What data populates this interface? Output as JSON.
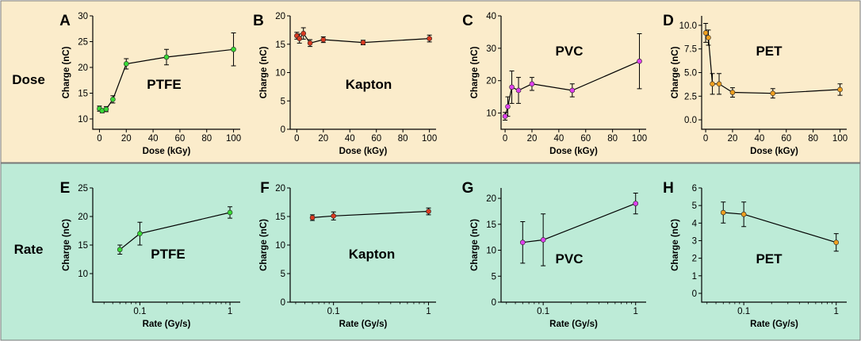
{
  "rows": {
    "dose": {
      "label": "Dose",
      "bg": "#fbeccb"
    },
    "rate": {
      "label": "Rate",
      "bg": "#bdebd7"
    }
  },
  "chart_data": [
    {
      "panel": "A",
      "type": "line",
      "material": "PTFE",
      "row": "dose",
      "xscale": "linear",
      "color": "#39d936",
      "xlabel": "Dose (kGy)",
      "ylabel": "Charge (nC)",
      "xlim": [
        -5,
        105
      ],
      "ylim": [
        8,
        30
      ],
      "xticks": [
        0,
        20,
        40,
        60,
        80,
        100
      ],
      "xtick_labels": [
        "0",
        "20",
        "40",
        "60",
        "80",
        "100"
      ],
      "yticks": [
        10,
        15,
        20,
        25,
        30
      ],
      "ytick_labels": [
        "10",
        "15",
        "20",
        "25",
        "30"
      ],
      "points": [
        {
          "x": 0,
          "y": 12,
          "err": 0.5
        },
        {
          "x": 2,
          "y": 11.6,
          "err": 0.4
        },
        {
          "x": 5,
          "y": 11.9,
          "err": 0.5
        },
        {
          "x": 10,
          "y": 13.8,
          "err": 0.7
        },
        {
          "x": 20,
          "y": 20.7,
          "err": 1.0
        },
        {
          "x": 50,
          "y": 22,
          "err": 1.5
        },
        {
          "x": 100,
          "y": 23.5,
          "err": 3.2
        }
      ]
    },
    {
      "panel": "B",
      "type": "line",
      "material": "Kapton",
      "row": "dose",
      "xscale": "linear",
      "color": "#d93a20",
      "xlabel": "Dose (kGy)",
      "ylabel": "Charge (nC)",
      "xlim": [
        -5,
        105
      ],
      "ylim": [
        0,
        20
      ],
      "xticks": [
        0,
        20,
        40,
        60,
        80,
        100
      ],
      "xtick_labels": [
        "0",
        "20",
        "40",
        "60",
        "80",
        "100"
      ],
      "yticks": [
        0,
        5,
        10,
        15,
        20
      ],
      "ytick_labels": [
        "0",
        "5",
        "10",
        "15",
        "20"
      ],
      "points": [
        {
          "x": 0,
          "y": 16.5,
          "err": 0.6
        },
        {
          "x": 2,
          "y": 16,
          "err": 0.8
        },
        {
          "x": 5,
          "y": 16.9,
          "err": 1.0
        },
        {
          "x": 10,
          "y": 15.2,
          "err": 0.6
        },
        {
          "x": 20,
          "y": 15.8,
          "err": 0.5
        },
        {
          "x": 50,
          "y": 15.3,
          "err": 0.4
        },
        {
          "x": 100,
          "y": 16,
          "err": 0.6
        }
      ]
    },
    {
      "panel": "C",
      "type": "line",
      "material": "PVC",
      "row": "dose",
      "xscale": "linear",
      "color": "#e040ef",
      "xlabel": "Dose (kGy)",
      "ylabel": "Charge (nC)",
      "xlim": [
        -3,
        105
      ],
      "ylim": [
        5,
        40
      ],
      "xticks": [
        0,
        20,
        40,
        60,
        80,
        100
      ],
      "xtick_labels": [
        "0",
        "20",
        "40",
        "60",
        "80",
        "100"
      ],
      "yticks": [
        10,
        20,
        30,
        40
      ],
      "ytick_labels": [
        "10",
        "20",
        "30",
        "40"
      ],
      "points": [
        {
          "x": 0,
          "y": 9,
          "err": 1.2
        },
        {
          "x": 2,
          "y": 12,
          "err": 3.0
        },
        {
          "x": 5,
          "y": 18,
          "err": 5.0
        },
        {
          "x": 10,
          "y": 17,
          "err": 4.0
        },
        {
          "x": 20,
          "y": 19,
          "err": 2.0
        },
        {
          "x": 50,
          "y": 17,
          "err": 2.0
        },
        {
          "x": 100,
          "y": 26,
          "err": 8.5
        }
      ]
    },
    {
      "panel": "D",
      "type": "line",
      "material": "PET",
      "row": "dose",
      "xscale": "linear",
      "color": "#f0a020",
      "xlabel": "Dose (kGy)",
      "ylabel": "Charge (nC)",
      "xlim": [
        -3,
        105
      ],
      "ylim": [
        -1,
        11
      ],
      "xticks": [
        0,
        20,
        40,
        60,
        80,
        100
      ],
      "xtick_labels": [
        "0",
        "20",
        "40",
        "60",
        "80",
        "100"
      ],
      "yticks": [
        0,
        2.5,
        5,
        7.5,
        10
      ],
      "ytick_labels": [
        "0.0",
        "2.5",
        "5.0",
        "7.5",
        "10.0"
      ],
      "points": [
        {
          "x": 0,
          "y": 9.2,
          "err": 1.0
        },
        {
          "x": 2,
          "y": 8.7,
          "err": 0.8
        },
        {
          "x": 5,
          "y": 3.8,
          "err": 1.1
        },
        {
          "x": 10,
          "y": 3.8,
          "err": 1.1
        },
        {
          "x": 20,
          "y": 2.9,
          "err": 0.5
        },
        {
          "x": 50,
          "y": 2.8,
          "err": 0.5
        },
        {
          "x": 100,
          "y": 3.2,
          "err": 0.6
        }
      ]
    },
    {
      "panel": "E",
      "type": "line",
      "material": "PTFE",
      "row": "rate",
      "xscale": "log",
      "color": "#39d936",
      "xlabel": "Rate (Gy/s)",
      "ylabel": "Charge (nC)",
      "xlim": [
        0.03,
        1.3
      ],
      "ylim": [
        5,
        25
      ],
      "xticks": [
        0.1,
        1
      ],
      "xtick_labels": [
        "0.1",
        "1"
      ],
      "yticks": [
        10,
        15,
        20,
        25
      ],
      "ytick_labels": [
        "10",
        "15",
        "20",
        "25"
      ],
      "points": [
        {
          "x": 0.06,
          "y": 14.2,
          "err": 0.8
        },
        {
          "x": 0.1,
          "y": 17,
          "err": 2.0
        },
        {
          "x": 1,
          "y": 20.7,
          "err": 1.0
        }
      ]
    },
    {
      "panel": "F",
      "type": "line",
      "material": "Kapton",
      "row": "rate",
      "xscale": "log",
      "color": "#d93a20",
      "xlabel": "Rate (Gy/s)",
      "ylabel": "Charge (nC)",
      "xlim": [
        0.035,
        1.2
      ],
      "ylim": [
        0,
        20
      ],
      "xticks": [
        0.1,
        1
      ],
      "xtick_labels": [
        "0.1",
        "1"
      ],
      "yticks": [
        0,
        5,
        10,
        15,
        20
      ],
      "ytick_labels": [
        "0",
        "5",
        "10",
        "15",
        "20"
      ],
      "points": [
        {
          "x": 0.06,
          "y": 14.8,
          "err": 0.5
        },
        {
          "x": 0.1,
          "y": 15.1,
          "err": 0.7
        },
        {
          "x": 1,
          "y": 15.9,
          "err": 0.6
        }
      ]
    },
    {
      "panel": "G",
      "type": "line",
      "material": "PVC",
      "row": "rate",
      "xscale": "log",
      "color": "#e040ef",
      "xlabel": "Rate (Gy/s)",
      "ylabel": "Charge (nC)",
      "xlim": [
        0.035,
        1.3
      ],
      "ylim": [
        0,
        22
      ],
      "xticks": [
        0.1,
        1
      ],
      "xtick_labels": [
        "0.1",
        "1"
      ],
      "yticks": [
        0,
        5,
        10,
        15,
        20
      ],
      "ytick_labels": [
        "0",
        "5",
        "10",
        "15",
        "20"
      ],
      "points": [
        {
          "x": 0.06,
          "y": 11.5,
          "err": 4.0
        },
        {
          "x": 0.1,
          "y": 12,
          "err": 5.0
        },
        {
          "x": 1,
          "y": 19,
          "err": 2.0
        }
      ]
    },
    {
      "panel": "H",
      "type": "line",
      "material": "PET",
      "row": "rate",
      "xscale": "log",
      "color": "#f0a020",
      "xlabel": "Rate (Gy/s)",
      "ylabel": "Charge (nC)",
      "xlim": [
        0.035,
        1.3
      ],
      "ylim": [
        -0.5,
        6
      ],
      "xticks": [
        0.1,
        1
      ],
      "xtick_labels": [
        "0.1",
        "1"
      ],
      "yticks": [
        0,
        1,
        2,
        3,
        4,
        5,
        6
      ],
      "ytick_labels": [
        "0",
        "1",
        "2",
        "3",
        "4",
        "5",
        "6"
      ],
      "points": [
        {
          "x": 0.06,
          "y": 4.6,
          "err": 0.6
        },
        {
          "x": 0.1,
          "y": 4.5,
          "err": 0.7
        },
        {
          "x": 1,
          "y": 2.9,
          "err": 0.5
        }
      ]
    }
  ]
}
